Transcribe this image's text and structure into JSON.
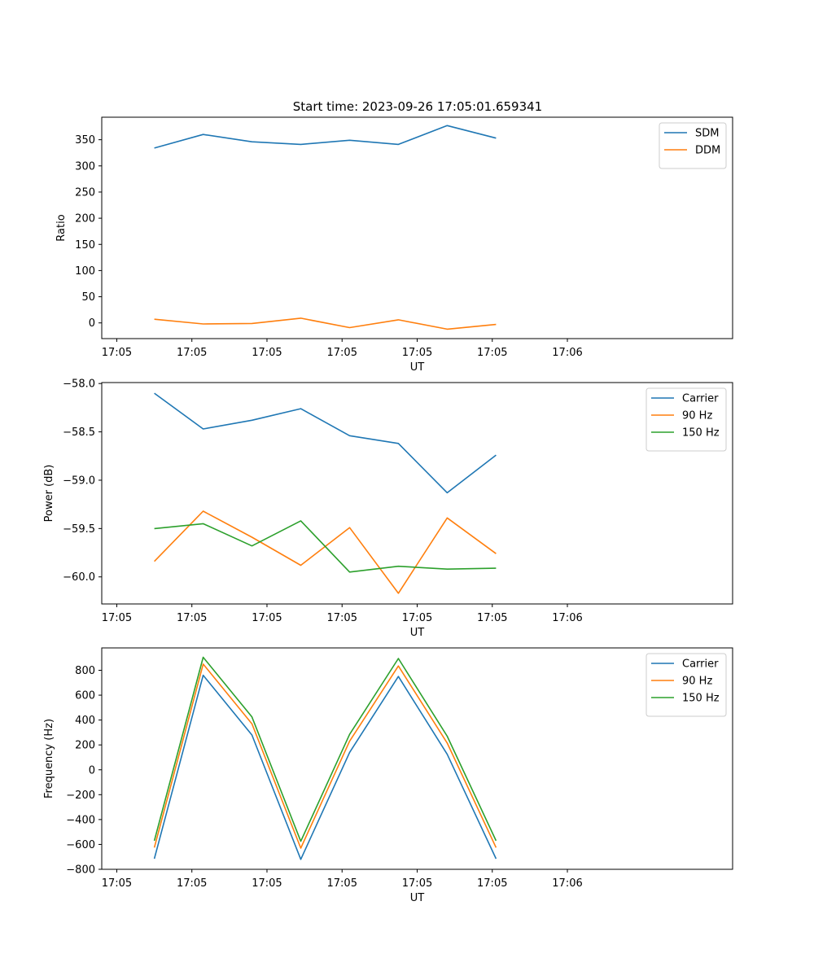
{
  "figure_title": "Start time: 2023-09-26 17:05:01.659341",
  "colors": {
    "blue": "#1f77b4",
    "orange": "#ff7f0e",
    "green": "#2ca02c"
  },
  "chart_data": [
    {
      "type": "line",
      "xlabel": "UT",
      "ylabel": "Ratio",
      "ylim": [
        -30,
        393
      ],
      "yticks": [
        0,
        50,
        100,
        150,
        200,
        250,
        300,
        350
      ],
      "xlim": [
        -0.2,
        8.2
      ],
      "x_ticks": [
        0,
        1,
        2,
        3,
        4,
        5,
        6
      ],
      "x_tick_labels": [
        "17:05",
        "17:05",
        "17:05",
        "17:05",
        "17:05",
        "17:05",
        "17:06"
      ],
      "x": [
        0.5,
        1.15,
        1.8,
        2.45,
        3.1,
        3.75,
        4.4,
        5.05
      ],
      "legend": "top-right",
      "series": [
        {
          "name": "SDM",
          "color": "blue",
          "values": [
            334,
            360,
            346,
            341,
            349,
            341,
            377,
            353
          ]
        },
        {
          "name": "DDM",
          "color": "orange",
          "values": [
            7,
            -2,
            -1,
            9,
            -9,
            6,
            -12,
            -3
          ]
        }
      ]
    },
    {
      "type": "line",
      "xlabel": "UT",
      "ylabel": "Power (dB)",
      "ylim": [
        -60.28,
        -57.99
      ],
      "yticks": [
        -60.0,
        -59.5,
        -59.0,
        -58.5,
        -58.0
      ],
      "ytick_labels": [
        "−60.0",
        "−59.5",
        "−59.0",
        "−58.5",
        "−58.0"
      ],
      "xlim": [
        -0.2,
        8.2
      ],
      "x_ticks": [
        0,
        1,
        2,
        3,
        4,
        5,
        6
      ],
      "x_tick_labels": [
        "17:05",
        "17:05",
        "17:05",
        "17:05",
        "17:05",
        "17:05",
        "17:06"
      ],
      "x": [
        0.5,
        1.15,
        1.8,
        2.45,
        3.1,
        3.75,
        4.4,
        5.05
      ],
      "legend": "top-right",
      "series": [
        {
          "name": "Carrier",
          "color": "blue",
          "values": [
            -58.1,
            -58.47,
            -58.38,
            -58.26,
            -58.54,
            -58.62,
            -59.13,
            -58.74
          ]
        },
        {
          "name": "90 Hz",
          "color": "orange",
          "values": [
            -59.84,
            -59.32,
            -59.59,
            -59.88,
            -59.49,
            -60.17,
            -59.39,
            -59.76
          ]
        },
        {
          "name": "150 Hz",
          "color": "green",
          "values": [
            -59.5,
            -59.45,
            -59.68,
            -59.42,
            -59.95,
            -59.89,
            -59.92,
            -59.91
          ]
        }
      ]
    },
    {
      "type": "line",
      "xlabel": "UT",
      "ylabel": "Frequency (Hz)",
      "ylim": [
        -800,
        980
      ],
      "yticks": [
        -800,
        -600,
        -400,
        -200,
        0,
        200,
        400,
        600,
        800
      ],
      "ytick_labels": [
        "−800",
        "−600",
        "−400",
        "−200",
        "0",
        "200",
        "400",
        "600",
        "800"
      ],
      "xlim": [
        -0.2,
        8.2
      ],
      "x_ticks": [
        0,
        1,
        2,
        3,
        4,
        5,
        6
      ],
      "x_tick_labels": [
        "17:05",
        "17:05",
        "17:05",
        "17:05",
        "17:05",
        "17:05",
        "17:06"
      ],
      "x": [
        0.5,
        1.15,
        1.8,
        2.45,
        3.1,
        3.75,
        4.4,
        5.05
      ],
      "legend": "top-right",
      "series": [
        {
          "name": "Carrier",
          "color": "blue",
          "values": [
            -715,
            760,
            280,
            -720,
            140,
            750,
            125,
            -715
          ]
        },
        {
          "name": "90 Hz",
          "color": "orange",
          "values": [
            -625,
            850,
            370,
            -630,
            230,
            835,
            215,
            -625
          ]
        },
        {
          "name": "150 Hz",
          "color": "green",
          "values": [
            -570,
            905,
            425,
            -575,
            285,
            895,
            270,
            -570
          ]
        }
      ]
    }
  ]
}
